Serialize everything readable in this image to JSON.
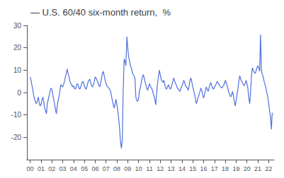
{
  "chart_data": {
    "type": "line",
    "title": "— U.S. 60/40 six-month return,  %",
    "x": [
      2000.0,
      2000.08,
      2000.17,
      2000.25,
      2000.33,
      2000.42,
      2000.5,
      2000.58,
      2000.67,
      2000.75,
      2000.83,
      2000.92,
      2001.0,
      2001.08,
      2001.17,
      2001.25,
      2001.33,
      2001.42,
      2001.5,
      2001.58,
      2001.67,
      2001.75,
      2001.83,
      2001.92,
      2002.0,
      2002.08,
      2002.17,
      2002.25,
      2002.33,
      2002.42,
      2002.5,
      2002.58,
      2002.67,
      2002.75,
      2002.83,
      2002.92,
      2003.0,
      2003.08,
      2003.17,
      2003.25,
      2003.33,
      2003.42,
      2003.5,
      2003.58,
      2003.67,
      2003.75,
      2003.83,
      2003.92,
      2004.0,
      2004.08,
      2004.17,
      2004.25,
      2004.33,
      2004.42,
      2004.5,
      2004.58,
      2004.67,
      2004.75,
      2004.83,
      2004.92,
      2005.0,
      2005.08,
      2005.17,
      2005.25,
      2005.33,
      2005.42,
      2005.5,
      2005.58,
      2005.67,
      2005.75,
      2005.83,
      2005.92,
      2006.0,
      2006.08,
      2006.17,
      2006.25,
      2006.33,
      2006.42,
      2006.5,
      2006.58,
      2006.67,
      2006.75,
      2006.83,
      2006.92,
      2007.0,
      2007.08,
      2007.17,
      2007.25,
      2007.33,
      2007.42,
      2007.5,
      2007.58,
      2007.67,
      2007.75,
      2007.83,
      2007.92,
      2008.0,
      2008.08,
      2008.17,
      2008.25,
      2008.33,
      2008.42,
      2008.5,
      2008.58,
      2008.67,
      2008.75,
      2008.83,
      2008.92,
      2009.0,
      2009.08,
      2009.17,
      2009.25,
      2009.33,
      2009.42,
      2009.5,
      2009.58,
      2009.67,
      2009.75,
      2009.83,
      2009.92,
      2010.0,
      2010.08,
      2010.17,
      2010.25,
      2010.33,
      2010.42,
      2010.5,
      2010.58,
      2010.67,
      2010.75,
      2010.83,
      2010.92,
      2011.0,
      2011.08,
      2011.17,
      2011.25,
      2011.33,
      2011.42,
      2011.5,
      2011.58,
      2011.67,
      2011.75,
      2011.83,
      2011.92,
      2012.0,
      2012.08,
      2012.17,
      2012.25,
      2012.33,
      2012.42,
      2012.5,
      2012.58,
      2012.67,
      2012.75,
      2012.83,
      2012.92,
      2013.0,
      2013.08,
      2013.17,
      2013.25,
      2013.33,
      2013.42,
      2013.5,
      2013.58,
      2013.67,
      2013.75,
      2013.83,
      2013.92,
      2014.0,
      2014.08,
      2014.17,
      2014.25,
      2014.33,
      2014.42,
      2014.5,
      2014.58,
      2014.67,
      2014.75,
      2014.83,
      2014.92,
      2015.0,
      2015.08,
      2015.17,
      2015.25,
      2015.33,
      2015.42,
      2015.5,
      2015.58,
      2015.67,
      2015.75,
      2015.83,
      2015.92,
      2016.0,
      2016.08,
      2016.17,
      2016.25,
      2016.33,
      2016.42,
      2016.5,
      2016.58,
      2016.67,
      2016.75,
      2016.83,
      2016.92,
      2017.0,
      2017.08,
      2017.17,
      2017.25,
      2017.33,
      2017.42,
      2017.5,
      2017.58,
      2017.67,
      2017.75,
      2017.83,
      2017.92,
      2018.0,
      2018.08,
      2018.17,
      2018.25,
      2018.33,
      2018.42,
      2018.5,
      2018.58,
      2018.67,
      2018.75,
      2018.83,
      2018.92,
      2019.0,
      2019.08,
      2019.17,
      2019.25,
      2019.33,
      2019.42,
      2019.5,
      2019.58,
      2019.67,
      2019.75,
      2019.83,
      2019.92,
      2020.0,
      2020.08,
      2020.17,
      2020.25,
      2020.33,
      2020.42,
      2020.5,
      2020.58,
      2020.67,
      2020.75,
      2020.83,
      2020.92,
      2021.0,
      2021.08,
      2021.17,
      2021.25,
      2021.33,
      2021.42,
      2021.5,
      2021.58,
      2021.67,
      2021.75,
      2021.83,
      2021.92,
      2022.0,
      2022.08,
      2022.17,
      2022.25,
      2022.33
    ],
    "values": [
      7.0,
      5.5,
      3.0,
      1.0,
      -1.5,
      -3.0,
      -4.5,
      -5.0,
      -3.5,
      -2.0,
      -4.5,
      -6.0,
      -5.5,
      -3.5,
      -2.0,
      -4.0,
      -7.0,
      -8.0,
      -9.5,
      -5.0,
      -3.0,
      -1.5,
      0.5,
      2.0,
      1.5,
      -1.0,
      -3.0,
      -5.0,
      -7.5,
      -9.5,
      -6.0,
      -3.5,
      -1.5,
      1.0,
      3.5,
      3.0,
      2.5,
      3.5,
      5.0,
      7.0,
      8.5,
      10.5,
      8.5,
      7.0,
      5.0,
      4.0,
      3.5,
      2.5,
      3.0,
      2.0,
      1.5,
      2.5,
      4.0,
      3.5,
      2.0,
      1.5,
      2.5,
      4.0,
      5.0,
      4.5,
      3.0,
      2.0,
      1.5,
      3.0,
      4.5,
      5.5,
      6.0,
      4.5,
      3.0,
      2.5,
      3.5,
      5.0,
      7.0,
      6.5,
      5.5,
      4.5,
      3.5,
      2.5,
      4.0,
      6.5,
      8.5,
      9.5,
      7.5,
      5.5,
      4.0,
      3.0,
      2.5,
      2.0,
      1.5,
      0.5,
      -1.5,
      -3.5,
      -5.5,
      -7.0,
      -5.0,
      -3.0,
      -5.5,
      -8.0,
      -12.0,
      -16.0,
      -22.0,
      -25.0,
      -21.0,
      0.5,
      15.0,
      14.0,
      12.0,
      25.0,
      20.0,
      16.0,
      14.0,
      12.0,
      11.0,
      9.0,
      8.0,
      7.5,
      6.0,
      -2.0,
      -3.5,
      -4.0,
      -2.5,
      0.5,
      2.5,
      4.5,
      6.5,
      8.0,
      7.0,
      5.0,
      3.5,
      2.0,
      1.0,
      2.5,
      4.0,
      3.0,
      2.0,
      1.5,
      0.0,
      -1.5,
      -3.0,
      -5.5,
      0.0,
      4.0,
      7.0,
      10.0,
      8.0,
      6.0,
      5.0,
      4.5,
      5.5,
      3.5,
      2.0,
      1.5,
      2.5,
      3.5,
      2.5,
      1.5,
      2.0,
      3.5,
      5.0,
      6.5,
      5.0,
      4.0,
      3.0,
      2.0,
      1.5,
      1.0,
      0.5,
      2.0,
      3.0,
      4.0,
      5.5,
      4.5,
      3.0,
      2.5,
      2.0,
      1.0,
      3.0,
      5.5,
      6.5,
      4.5,
      2.5,
      1.0,
      -1.0,
      -3.0,
      -5.0,
      -3.5,
      -2.0,
      -1.0,
      0.5,
      2.0,
      1.0,
      -1.0,
      -2.5,
      -1.0,
      1.0,
      2.5,
      1.5,
      0.5,
      2.0,
      3.5,
      4.5,
      3.0,
      2.0,
      1.5,
      2.5,
      3.0,
      4.0,
      5.0,
      4.5,
      3.5,
      3.0,
      2.5,
      2.0,
      2.5,
      3.0,
      4.0,
      5.5,
      4.5,
      3.0,
      1.5,
      0.0,
      -1.0,
      -2.0,
      -1.0,
      0.5,
      -1.5,
      -4.0,
      -6.0,
      -3.5,
      -1.0,
      2.0,
      5.0,
      7.5,
      6.0,
      5.0,
      4.5,
      3.5,
      3.0,
      4.0,
      5.5,
      4.0,
      2.0,
      -2.5,
      -5.0,
      0.0,
      8.0,
      11.0,
      10.0,
      9.0,
      8.5,
      9.5,
      11.0,
      12.0,
      11.0,
      9.5,
      26.0,
      10.0,
      8.0,
      7.0,
      5.0,
      3.5,
      2.0,
      0.0,
      -2.0,
      -5.0,
      -8.0,
      -11.0,
      -16.5,
      -9.0
    ],
    "xlim": [
      1999.7,
      2022.5
    ],
    "xticks": [
      {
        "value": 2000,
        "label": "00"
      },
      {
        "value": 2001,
        "label": "01"
      },
      {
        "value": 2002,
        "label": "02"
      },
      {
        "value": 2003,
        "label": "03"
      },
      {
        "value": 2004,
        "label": "04"
      },
      {
        "value": 2005,
        "label": "05"
      },
      {
        "value": 2006,
        "label": "06"
      },
      {
        "value": 2007,
        "label": "07"
      },
      {
        "value": 2008,
        "label": "08"
      },
      {
        "value": 2009,
        "label": "09"
      },
      {
        "value": 2010,
        "label": "10"
      },
      {
        "value": 2011,
        "label": "11"
      },
      {
        "value": 2012,
        "label": "12"
      },
      {
        "value": 2013,
        "label": "13"
      },
      {
        "value": 2014,
        "label": "14"
      },
      {
        "value": 2015,
        "label": "15"
      },
      {
        "value": 2016,
        "label": "16"
      },
      {
        "value": 2017,
        "label": "17"
      },
      {
        "value": 2018,
        "label": "18"
      },
      {
        "value": 2019,
        "label": "19"
      },
      {
        "value": 2020,
        "label": "20"
      },
      {
        "value": 2021,
        "label": "21"
      },
      {
        "value": 2022,
        "label": "22"
      }
    ],
    "ylim": [
      -30,
      30
    ],
    "yticks": [
      -20,
      -10,
      0,
      10,
      20,
      30
    ],
    "grid": false
  }
}
